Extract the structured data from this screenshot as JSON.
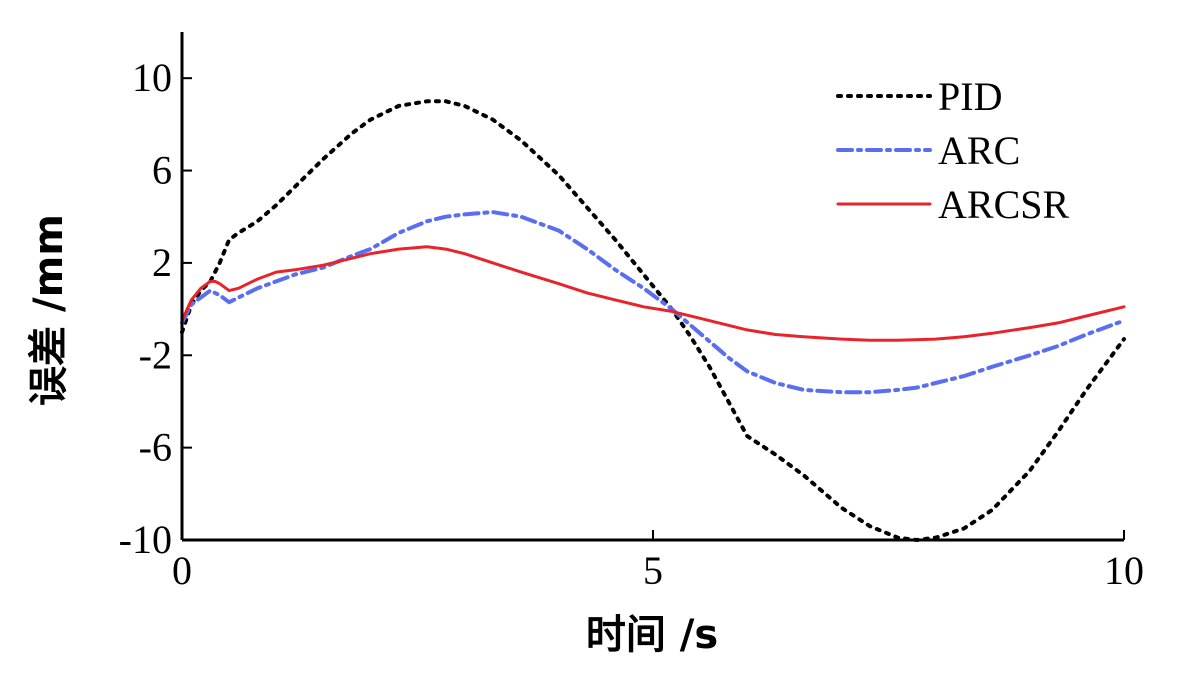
{
  "chart_data": {
    "type": "line",
    "xlabel": "时间 /s",
    "ylabel": "误差 /mm",
    "xlim": [
      0,
      10
    ],
    "ylim": [
      -10,
      12
    ],
    "xticks": [
      "0",
      "5",
      "10"
    ],
    "yticks": [
      "10",
      "6",
      "2",
      "-2",
      "-6",
      "-10"
    ],
    "ytick_values": [
      10,
      6,
      2,
      -2,
      -6,
      -10
    ],
    "xtick_values": [
      0,
      5,
      10
    ],
    "grid": false,
    "legend_position": "top-right",
    "series": [
      {
        "name": "PID",
        "color": "#000000",
        "style": "dotted",
        "x": [
          0,
          0.1,
          0.2,
          0.3,
          0.4,
          0.5,
          0.6,
          0.8,
          1.0,
          1.2,
          1.5,
          1.8,
          2.0,
          2.3,
          2.6,
          2.8,
          3.0,
          3.3,
          3.6,
          4.0,
          4.3,
          4.6,
          4.9,
          5.2,
          5.4,
          5.6,
          5.8,
          6.0,
          6.3,
          6.6,
          7.0,
          7.3,
          7.6,
          7.8,
          8.0,
          8.3,
          8.6,
          9.0,
          9.3,
          9.6,
          10.0
        ],
        "y": [
          -1.0,
          0.2,
          0.8,
          1.2,
          2.0,
          3.0,
          3.3,
          3.8,
          4.5,
          5.3,
          6.5,
          7.6,
          8.2,
          8.8,
          9.0,
          9.0,
          8.8,
          8.2,
          7.3,
          5.8,
          4.4,
          3.0,
          1.5,
          0.0,
          -1.2,
          -2.5,
          -4.0,
          -5.5,
          -6.3,
          -7.2,
          -8.6,
          -9.4,
          -9.9,
          -10.0,
          -9.9,
          -9.5,
          -8.7,
          -7.0,
          -5.3,
          -3.5,
          -1.3
        ]
      },
      {
        "name": "ARC",
        "color": "#5a6ef0",
        "style": "dashdot",
        "x": [
          0,
          0.1,
          0.2,
          0.3,
          0.4,
          0.5,
          0.6,
          0.8,
          1.0,
          1.2,
          1.5,
          1.8,
          2.0,
          2.3,
          2.6,
          2.8,
          3.0,
          3.3,
          3.6,
          4.0,
          4.3,
          4.6,
          4.9,
          5.2,
          5.4,
          5.6,
          5.8,
          6.0,
          6.3,
          6.6,
          7.0,
          7.3,
          7.6,
          7.8,
          8.0,
          8.3,
          8.6,
          9.0,
          9.3,
          9.6,
          10.0
        ],
        "y": [
          -0.6,
          0.2,
          0.5,
          0.8,
          0.6,
          0.3,
          0.5,
          0.9,
          1.2,
          1.5,
          1.8,
          2.3,
          2.6,
          3.3,
          3.8,
          4.0,
          4.1,
          4.2,
          4.0,
          3.4,
          2.6,
          1.7,
          0.9,
          0.0,
          -0.7,
          -1.4,
          -2.1,
          -2.7,
          -3.2,
          -3.5,
          -3.6,
          -3.6,
          -3.5,
          -3.4,
          -3.2,
          -2.9,
          -2.5,
          -2.0,
          -1.6,
          -1.1,
          -0.5
        ]
      },
      {
        "name": "ARCSR",
        "color": "#e8242a",
        "style": "solid",
        "x": [
          0,
          0.1,
          0.2,
          0.3,
          0.35,
          0.4,
          0.5,
          0.6,
          0.8,
          1.0,
          1.2,
          1.5,
          1.8,
          2.0,
          2.3,
          2.6,
          2.8,
          3.0,
          3.3,
          3.6,
          4.0,
          4.3,
          4.6,
          4.9,
          5.2,
          5.5,
          5.8,
          6.0,
          6.3,
          6.6,
          7.0,
          7.3,
          7.6,
          8.0,
          8.3,
          8.6,
          9.0,
          9.3,
          9.6,
          10.0
        ],
        "y": [
          -0.5,
          0.4,
          0.9,
          1.2,
          1.2,
          1.1,
          0.8,
          0.9,
          1.3,
          1.6,
          1.7,
          1.9,
          2.2,
          2.4,
          2.6,
          2.7,
          2.6,
          2.4,
          2.0,
          1.6,
          1.1,
          0.7,
          0.4,
          0.1,
          -0.1,
          -0.4,
          -0.7,
          -0.9,
          -1.1,
          -1.2,
          -1.3,
          -1.35,
          -1.35,
          -1.3,
          -1.2,
          -1.05,
          -0.8,
          -0.6,
          -0.3,
          0.1
        ]
      }
    ]
  }
}
